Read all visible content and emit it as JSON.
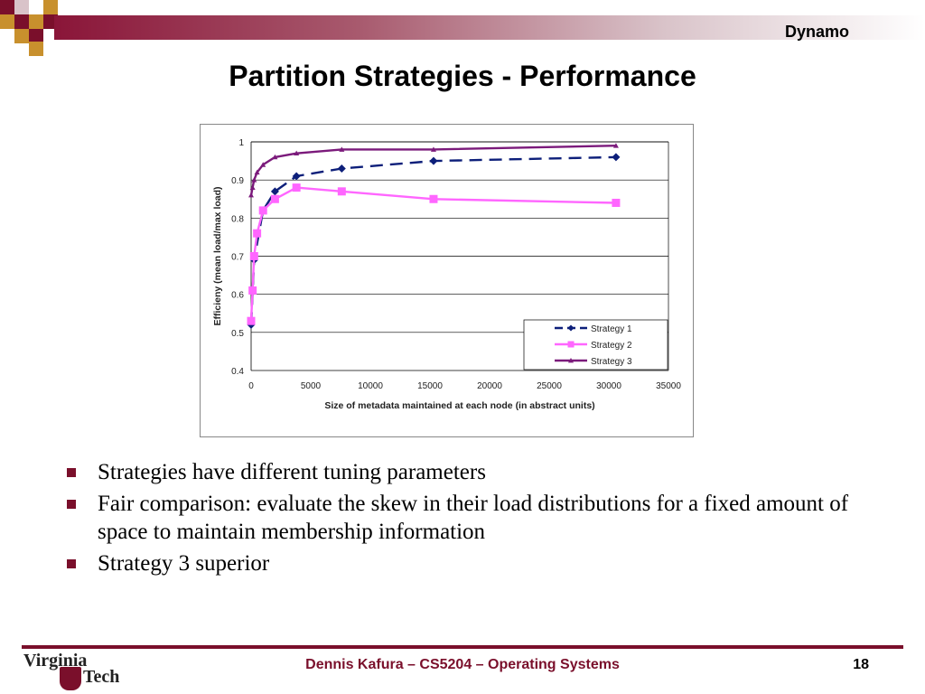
{
  "header": {
    "course_tag": "Dynamo",
    "title": "Partition Strategies - Performance"
  },
  "colors": {
    "accent": "#7a0f2b",
    "strategy1": "#0d1f7a",
    "strategy2": "#ff66ff",
    "strategy3": "#7b1a7b"
  },
  "chart_data": {
    "type": "line",
    "title": "",
    "xlabel": "Size of metadata maintained at each node (in abstract units)",
    "ylabel": "Efficieny (mean load/max load)",
    "xlim": [
      0,
      35000
    ],
    "ylim": [
      0.4,
      1
    ],
    "xticks": [
      "0",
      "5000",
      "10000",
      "15000",
      "20000",
      "25000",
      "30000",
      "35000"
    ],
    "yticks": [
      "0.4",
      "0.5",
      "0.6",
      "0.7",
      "0.8",
      "0.9",
      "1"
    ],
    "grid": "horizontal",
    "legend": "bottom-right",
    "series": [
      {
        "name": "Strategy 1",
        "style": "dashed",
        "marker": "diamond",
        "x": [
          0,
          250,
          1000,
          2000,
          3800,
          7600,
          15300,
          30600
        ],
        "y": [
          0.52,
          0.69,
          0.82,
          0.87,
          0.91,
          0.93,
          0.95,
          0.96
        ]
      },
      {
        "name": "Strategy 2",
        "style": "solid",
        "marker": "square",
        "x": [
          0,
          125,
          250,
          500,
          1000,
          2000,
          3800,
          7600,
          15300,
          30600
        ],
        "y": [
          0.53,
          0.61,
          0.7,
          0.76,
          0.82,
          0.85,
          0.88,
          0.87,
          0.85,
          0.84
        ]
      },
      {
        "name": "Strategy 3",
        "style": "solid",
        "marker": "triangle",
        "x": [
          0,
          125,
          250,
          500,
          1000,
          2000,
          3800,
          7600,
          15300,
          30600
        ],
        "y": [
          0.86,
          0.88,
          0.9,
          0.92,
          0.94,
          0.96,
          0.97,
          0.98,
          0.98,
          0.99
        ]
      }
    ]
  },
  "bullets": [
    "Strategies have different tuning parameters",
    "Fair comparison: evaluate the skew in their load distributions for a fixed amount of space to maintain membership information",
    "Strategy 3 superior"
  ],
  "footer": {
    "logo_text_1": "Virginia",
    "logo_text_2": "Tech",
    "caption": "Dennis Kafura – CS5204 – Operating Systems",
    "page": "18"
  }
}
